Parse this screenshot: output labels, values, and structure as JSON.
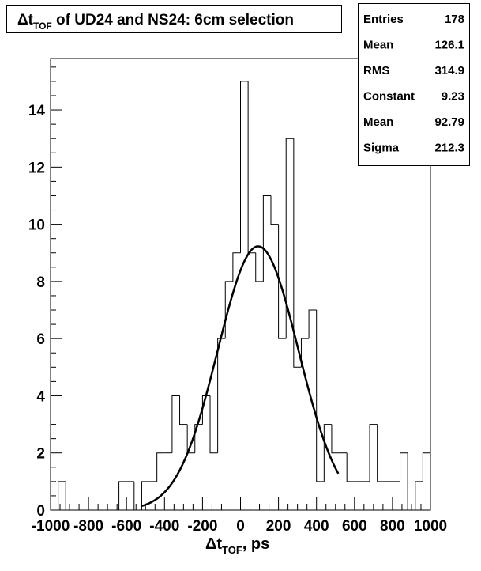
{
  "chart_data": {
    "type": "bar",
    "title_main": "Δt",
    "title_sub": "TOF",
    "title_rest": " of UD24 and NS24: 6cm selection",
    "xlabel_main": "Δt",
    "xlabel_sub": "TOF",
    "xlabel_rest": ", ps",
    "ylabel": "",
    "xlim": [
      -1000,
      1000
    ],
    "ylim": [
      0,
      15.8
    ],
    "bin_width": 40,
    "x_ticks": [
      -1000,
      -800,
      -600,
      -400,
      -200,
      0,
      200,
      400,
      600,
      800,
      1000
    ],
    "x_tick_labels": [
      "-1000",
      "-800",
      "-600",
      "-400",
      "-200",
      "0",
      "200",
      "400",
      "600",
      "800",
      "1000"
    ],
    "y_ticks": [
      0,
      2,
      4,
      6,
      8,
      10,
      12,
      14
    ],
    "y_tick_labels": [
      "0",
      "2",
      "4",
      "6",
      "8",
      "10",
      "12",
      "14"
    ],
    "counts": [
      0,
      1,
      0,
      0,
      0,
      0,
      0,
      0,
      0,
      1,
      1,
      0,
      1,
      1,
      2,
      2,
      4,
      3,
      2,
      3,
      4,
      2,
      6,
      8,
      9,
      15,
      9,
      8,
      11,
      10,
      6,
      13,
      5,
      6,
      7,
      1,
      3,
      2,
      2,
      1,
      1,
      1,
      3,
      1,
      1,
      1,
      2,
      0,
      1,
      2
    ],
    "fit": {
      "function": "gaus",
      "constant": 9.23,
      "mean": 92.79,
      "sigma": 212.3,
      "range": [
        -520,
        515
      ]
    },
    "stats": [
      {
        "label": "Entries",
        "value": "178"
      },
      {
        "label": "Mean",
        "value": "126.1"
      },
      {
        "label": "RMS",
        "value": "314.9"
      },
      {
        "label": "Constant",
        "value": "9.23"
      },
      {
        "label": "Mean",
        "value": "92.79"
      },
      {
        "label": "Sigma",
        "value": "212.3"
      }
    ],
    "grid": false,
    "legend": "top-right"
  }
}
